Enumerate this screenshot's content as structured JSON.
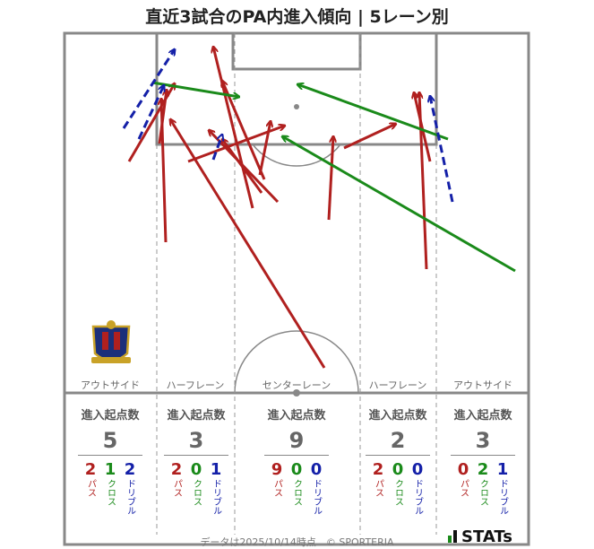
{
  "title": "直近3試合のPA内進入傾向 | 5レーン別",
  "lanes": [
    {
      "label": "アウトサイド",
      "header": "進入起点数",
      "total": "5",
      "pass": "2",
      "cross": "1",
      "dribble": "2"
    },
    {
      "label": "ハーフレーン",
      "header": "進入起点数",
      "total": "3",
      "pass": "2",
      "cross": "0",
      "dribble": "1"
    },
    {
      "label": "センターレーン",
      "header": "進入起点数",
      "total": "9",
      "pass": "9",
      "cross": "0",
      "dribble": "0"
    },
    {
      "label": "ハーフレーン",
      "header": "進入起点数",
      "total": "2",
      "pass": "2",
      "cross": "0",
      "dribble": "0"
    },
    {
      "label": "アウトサイド",
      "header": "進入起点数",
      "total": "3",
      "pass": "0",
      "cross": "2",
      "dribble": "1"
    }
  ],
  "legend_labels": {
    "pass": "パス",
    "cross": "クロス",
    "dribble": "ドリブル"
  },
  "colors": {
    "pass": "#b0201f",
    "cross": "#1a8a1a",
    "dribble": "#1420a8",
    "pitch_line": "#888888"
  },
  "footer": "データは2025/10/14時点　© SPORTERIA",
  "brand": "STATs",
  "crest_icon": "team-crest-icon"
}
